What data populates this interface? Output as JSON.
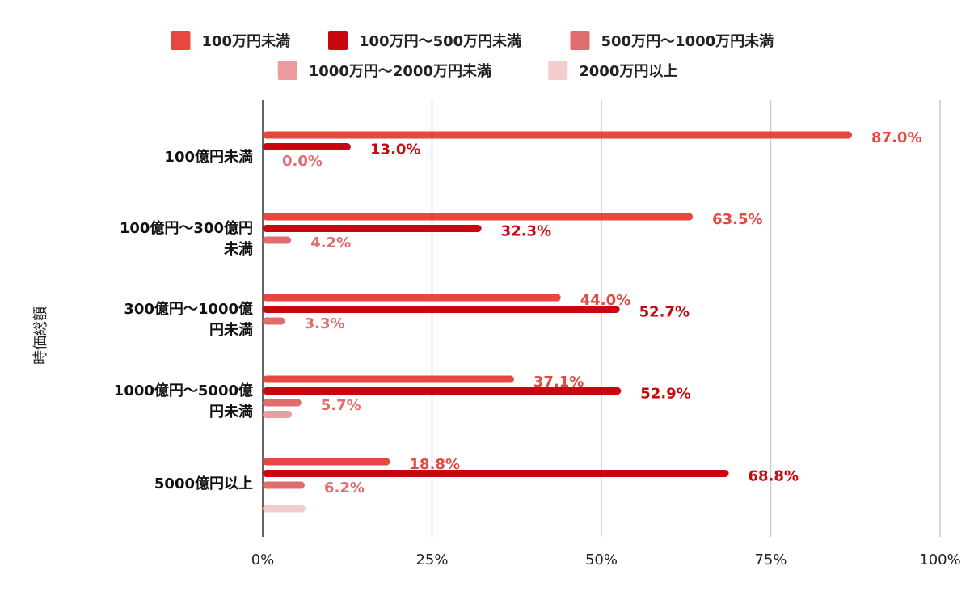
{
  "chart_data": {
    "type": "bar",
    "orientation": "horizontal",
    "ylabel": "時価総額",
    "xlabel": "",
    "x_ticks": [
      "0%",
      "25%",
      "50%",
      "75%",
      "100%"
    ],
    "xlim": [
      0,
      100
    ],
    "grid": true,
    "legend_position": "top",
    "categories": [
      [
        "100億円未満"
      ],
      [
        "100億円～300億円",
        "未満"
      ],
      [
        "300億円～1000億",
        "円未満"
      ],
      [
        "1000億円～5000億",
        "円未満"
      ],
      [
        "5000億円以上"
      ]
    ],
    "series": [
      {
        "name": "100万円未満",
        "color": "#e8473f",
        "values": [
          87.0,
          63.5,
          44.0,
          37.1,
          18.8
        ],
        "labels": [
          "87.0%",
          "63.5%",
          "44.0%",
          "37.1%",
          "18.8%"
        ]
      },
      {
        "name": "100万円～500万円未満",
        "color": "#c8070e",
        "values": [
          13.0,
          32.3,
          52.7,
          52.9,
          68.8
        ],
        "labels": [
          "13.0%",
          "32.3%",
          "52.7%",
          "52.9%",
          "68.8%"
        ]
      },
      {
        "name": "500万円～1000万円未満",
        "color": "#e06d6d",
        "values": [
          0.0,
          4.2,
          3.3,
          5.7,
          6.2
        ],
        "labels": [
          "0.0%",
          "4.2%",
          "3.3%",
          "5.7%",
          "6.2%"
        ]
      },
      {
        "name": "1000万円～2000万円未満",
        "color": "#eb9d9d",
        "values": [
          0,
          0,
          0,
          4.3,
          0
        ],
        "labels": [
          "",
          "",
          "",
          "",
          ""
        ]
      },
      {
        "name": "2000万円以上",
        "color": "#f3cccc",
        "values": [
          0,
          0,
          0,
          0,
          6.3
        ],
        "labels": [
          "",
          "",
          "",
          "",
          ""
        ]
      }
    ]
  }
}
